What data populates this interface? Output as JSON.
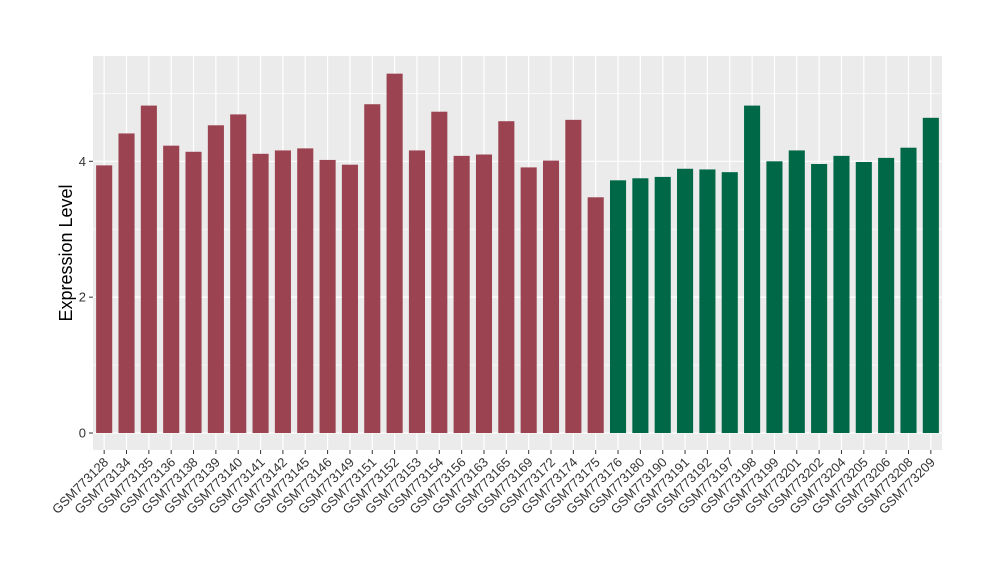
{
  "chart_data": {
    "type": "bar",
    "title": "",
    "xlabel": "",
    "ylabel": "Expression Level",
    "ylim": [
      -0.25,
      5.55
    ],
    "yticks": [
      0,
      2,
      4
    ],
    "grid": true,
    "legend": "none",
    "categories": [
      "GSM773128",
      "GSM773134",
      "GSM773135",
      "GSM773136",
      "GSM773138",
      "GSM773139",
      "GSM773140",
      "GSM773141",
      "GSM773142",
      "GSM773145",
      "GSM773146",
      "GSM773149",
      "GSM773151",
      "GSM773152",
      "GSM773153",
      "GSM773154",
      "GSM773156",
      "GSM773163",
      "GSM773165",
      "GSM773169",
      "GSM773172",
      "GSM773174",
      "GSM773175",
      "GSM773176",
      "GSM773180",
      "GSM773190",
      "GSM773191",
      "GSM773192",
      "GSM773197",
      "GSM773198",
      "GSM773199",
      "GSM773201",
      "GSM773202",
      "GSM773204",
      "GSM773205",
      "GSM773206",
      "GSM773208",
      "GSM773209"
    ],
    "values": [
      3.94,
      4.41,
      4.82,
      4.23,
      4.14,
      4.53,
      4.69,
      4.11,
      4.16,
      4.19,
      4.02,
      3.95,
      4.84,
      5.29,
      4.16,
      4.73,
      4.08,
      4.1,
      4.59,
      3.91,
      4.01,
      4.61,
      3.47,
      3.72,
      3.75,
      3.77,
      3.89,
      3.88,
      3.84,
      4.82,
      4.0,
      4.16,
      3.96,
      4.08,
      3.99,
      4.05,
      4.2,
      4.64
    ],
    "groups": [
      "g1",
      "g1",
      "g1",
      "g1",
      "g1",
      "g1",
      "g1",
      "g1",
      "g1",
      "g1",
      "g1",
      "g1",
      "g1",
      "g1",
      "g1",
      "g1",
      "g1",
      "g1",
      "g1",
      "g1",
      "g1",
      "g1",
      "g1",
      "g2",
      "g2",
      "g2",
      "g2",
      "g2",
      "g2",
      "g2",
      "g2",
      "g2",
      "g2",
      "g2",
      "g2",
      "g2",
      "g2",
      "g2"
    ],
    "colors": {
      "g1": "#9b4350",
      "g2": "#006847",
      "panel": "#ebebeb",
      "grid": "#ffffff"
    }
  }
}
